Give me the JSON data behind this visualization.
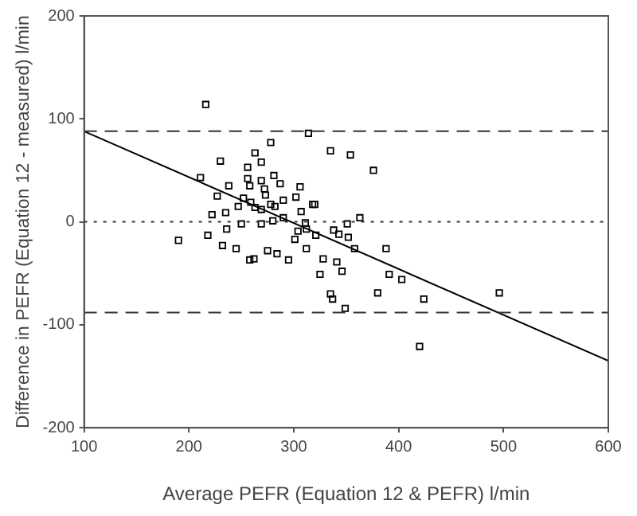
{
  "chart_data": {
    "type": "scatter",
    "xlabel": "Average PEFR (Equation 12 & PEFR) l/min",
    "ylabel": "Difference in PEFR (Equation 12 - measured) l/min",
    "xlim": [
      100,
      600
    ],
    "xticks": [
      100,
      200,
      300,
      400,
      500,
      600
    ],
    "ylim": [
      -200,
      200
    ],
    "yticks": [
      -200,
      -100,
      0,
      100,
      200
    ],
    "grid": false,
    "legend": false,
    "series": [
      {
        "color": "#000000",
        "marker": "square",
        "x": [
          216,
          314,
          278,
          335,
          354,
          376,
          263,
          230,
          256,
          269,
          211,
          238,
          256,
          269,
          281,
          287,
          306,
          258,
          272,
          227,
          252,
          259,
          273,
          290,
          302,
          318,
          247,
          263,
          269,
          278,
          282,
          222,
          235,
          250,
          269,
          280,
          290,
          307,
          304,
          311,
          312,
          236,
          338,
          351,
          363,
          190,
          218,
          232,
          245,
          262,
          275,
          258,
          284,
          295,
          301,
          312,
          321,
          320,
          343,
          352,
          358,
          388,
          328,
          341,
          325,
          346,
          391,
          403,
          380,
          424,
          335,
          337,
          349,
          420,
          496
        ],
        "values": [
          114,
          86,
          77,
          69,
          65,
          50,
          67,
          59,
          53,
          58,
          43,
          35,
          42,
          40,
          45,
          37,
          34,
          35,
          32,
          25,
          23,
          19,
          26,
          21,
          24,
          17,
          15,
          14,
          12,
          17,
          15,
          7,
          9,
          -2,
          -2,
          1,
          4,
          10,
          -9,
          -1,
          -7,
          -7,
          -8,
          -2,
          4,
          -18,
          -13,
          -23,
          -26,
          -36,
          -28,
          -37,
          -31,
          -37,
          -17,
          -26,
          -13,
          17,
          -12,
          -15,
          -26,
          -26,
          -36,
          -39,
          -51,
          -48,
          -51,
          -56,
          -69,
          -75,
          -70,
          -75,
          -84,
          -121,
          -69
        ]
      },
      {
        "type": "line",
        "color": "#000000",
        "marker": "none",
        "x": [
          100,
          600
        ],
        "values": [
          88,
          -135
        ]
      }
    ],
    "ref_lines": [
      {
        "axis": "y",
        "value": 88,
        "line_style": "dashed"
      },
      {
        "axis": "y",
        "value": 0,
        "line_style": "dotted"
      },
      {
        "axis": "y",
        "value": -88,
        "line_style": "dashed"
      }
    ]
  }
}
